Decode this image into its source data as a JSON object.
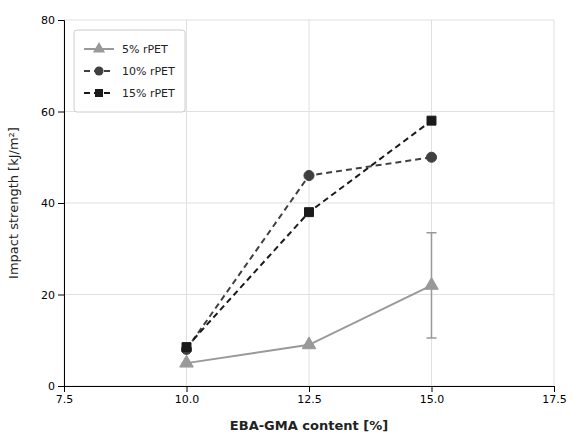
{
  "chart_data": {
    "type": "line",
    "x": [
      10.0,
      12.5,
      15.0
    ],
    "xlabel": "EBA-GMA content [%]",
    "ylabel": "Impact strength [kJ/m²]",
    "xlim": [
      7.5,
      17.5
    ],
    "ylim": [
      0,
      80
    ],
    "xticks": [
      7.5,
      {
        "value": 10.0,
        "label": "10.0"
      },
      12.5,
      {
        "value": 15.0,
        "label": "15.0"
      },
      17.5
    ],
    "yticks": [
      0,
      20,
      40,
      60,
      80
    ],
    "grid": true,
    "legend": "upper left",
    "series": [
      {
        "name": "5% rPET",
        "color": "#999999",
        "marker": "triangle",
        "line_style": "solid",
        "values": [
          5.0,
          9.0,
          22.0
        ],
        "errors": [
          0,
          0,
          11.5
        ]
      },
      {
        "name": "10% rPET",
        "color": "#404040",
        "marker": "circle",
        "line_style": "dashed",
        "values": [
          8.0,
          46.0,
          50.0
        ]
      },
      {
        "name": "15% rPET",
        "color": "#1a1a1a",
        "marker": "square",
        "line_style": "dashed",
        "values": [
          8.5,
          38.0,
          58.0
        ]
      }
    ]
  }
}
